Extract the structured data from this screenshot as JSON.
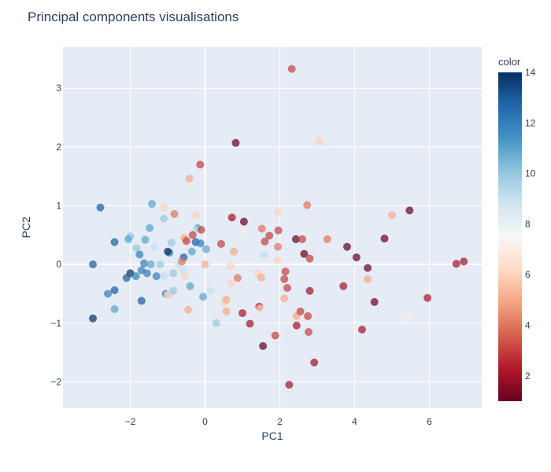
{
  "chart_data": {
    "type": "scatter",
    "title": "Principal components visualisations",
    "xlabel": "PC1",
    "ylabel": "PC2",
    "xlim": [
      -3.8,
      7.4
    ],
    "ylim": [
      -2.45,
      3.7
    ],
    "xticks": [
      -2,
      0,
      2,
      4,
      6
    ],
    "yticks": [
      -2,
      -1,
      0,
      1,
      2,
      3
    ],
    "grid": true,
    "legend": "colorbar-right",
    "colorbar": {
      "title": "color",
      "range": [
        1,
        14
      ],
      "ticks": [
        2,
        4,
        6,
        8,
        10,
        12,
        14
      ],
      "colorscale": [
        "#67001f",
        "#b2182b",
        "#d6604d",
        "#f4a582",
        "#fddbc7",
        "#f7f7f7",
        "#d1e5f0",
        "#92c5de",
        "#4393c3",
        "#2166ac",
        "#053061"
      ]
    },
    "points": [
      [
        2.32,
        3.33,
        3
      ],
      [
        0.82,
        2.07,
        1
      ],
      [
        3.07,
        2.1,
        6
      ],
      [
        -0.13,
        1.7,
        3
      ],
      [
        -0.42,
        1.46,
        5
      ],
      [
        -2.8,
        0.97,
        13
      ],
      [
        -1.42,
        1.03,
        11
      ],
      [
        -1.09,
        0.97,
        6
      ],
      [
        -0.24,
        0.85,
        6
      ],
      [
        -0.82,
        0.86,
        4
      ],
      [
        -1.1,
        0.78,
        10
      ],
      [
        0.72,
        0.8,
        2
      ],
      [
        1.04,
        0.73,
        1
      ],
      [
        1.95,
        0.9,
        6
      ],
      [
        2.73,
        1.01,
        4
      ],
      [
        5.0,
        0.84,
        5
      ],
      [
        5.47,
        0.92,
        1
      ],
      [
        -1.48,
        0.62,
        11
      ],
      [
        -0.2,
        0.62,
        11
      ],
      [
        -0.26,
        0.58,
        9
      ],
      [
        -0.1,
        0.59,
        3
      ],
      [
        1.03,
        0.58,
        7
      ],
      [
        1.52,
        0.61,
        4
      ],
      [
        1.72,
        0.49,
        3
      ],
      [
        1.96,
        0.58,
        3
      ],
      [
        -2.0,
        0.48,
        10
      ],
      [
        -2.05,
        0.43,
        11
      ],
      [
        -1.6,
        0.42,
        11
      ],
      [
        -0.9,
        0.37,
        10
      ],
      [
        -0.55,
        0.45,
        5
      ],
      [
        -0.33,
        0.5,
        3
      ],
      [
        -0.25,
        0.38,
        13
      ],
      [
        -0.12,
        0.36,
        12
      ],
      [
        0.03,
        0.26,
        11
      ],
      [
        0.43,
        0.35,
        3
      ],
      [
        1.6,
        0.39,
        3
      ],
      [
        2.43,
        0.43,
        1
      ],
      [
        2.6,
        0.43,
        3
      ],
      [
        3.27,
        0.43,
        4
      ],
      [
        3.8,
        0.3,
        1
      ],
      [
        4.8,
        0.44,
        1
      ],
      [
        -2.42,
        0.38,
        13
      ],
      [
        -1.83,
        0.28,
        10
      ],
      [
        -1.35,
        0.3,
        9
      ],
      [
        -1.1,
        0.25,
        8
      ],
      [
        -0.5,
        0.4,
        3
      ],
      [
        -0.95,
        0.2,
        12
      ],
      [
        -0.57,
        0.12,
        13
      ],
      [
        -0.35,
        0.22,
        11
      ],
      [
        0.77,
        0.22,
        5
      ],
      [
        1.95,
        0.3,
        4
      ],
      [
        2.65,
        0.18,
        1
      ],
      [
        2.8,
        0.1,
        3
      ],
      [
        1.58,
        0.17,
        9
      ],
      [
        1.95,
        0.07,
        6
      ],
      [
        4.05,
        0.12,
        1
      ],
      [
        4.35,
        -0.06,
        1
      ],
      [
        6.72,
        0.01,
        2
      ],
      [
        6.92,
        0.05,
        2
      ],
      [
        -3.0,
        0.0,
        13
      ],
      [
        -1.75,
        0.17,
        12
      ],
      [
        -1.63,
        0.02,
        12
      ],
      [
        -1.45,
        0.0,
        11
      ],
      [
        -1.2,
        0.0,
        10
      ],
      [
        -1.0,
        0.22,
        14
      ],
      [
        -0.7,
        0.0,
        9
      ],
      [
        -0.62,
        0.05,
        4
      ],
      [
        0.0,
        0.0,
        5
      ],
      [
        0.67,
        -0.03,
        6
      ],
      [
        2.15,
        -0.12,
        3
      ],
      [
        -1.7,
        -0.1,
        12
      ],
      [
        -1.55,
        -0.15,
        12
      ],
      [
        -1.3,
        -0.2,
        12
      ],
      [
        -1.1,
        -0.2,
        9
      ],
      [
        -0.85,
        -0.15,
        10
      ],
      [
        -0.6,
        -0.1,
        9
      ],
      [
        -2.0,
        -0.15,
        14
      ],
      [
        -2.1,
        -0.23,
        13
      ],
      [
        -1.85,
        -0.2,
        12
      ],
      [
        -0.55,
        -0.2,
        6
      ],
      [
        0.87,
        -0.23,
        4
      ],
      [
        1.42,
        -0.15,
        6
      ],
      [
        1.5,
        -0.22,
        5
      ],
      [
        2.12,
        -0.25,
        3
      ],
      [
        2.2,
        -0.4,
        3
      ],
      [
        4.35,
        -0.25,
        5
      ],
      [
        2.8,
        -0.45,
        2
      ],
      [
        3.7,
        -0.37,
        2
      ],
      [
        -2.6,
        -0.5,
        12
      ],
      [
        -2.42,
        -0.44,
        13
      ],
      [
        -1.05,
        -0.5,
        12
      ],
      [
        -0.95,
        -0.5,
        9
      ],
      [
        -1.0,
        -0.52,
        6
      ],
      [
        -0.85,
        -0.45,
        10
      ],
      [
        -0.4,
        -0.37,
        11
      ],
      [
        0.15,
        -0.45,
        9
      ],
      [
        0.7,
        -0.32,
        6
      ],
      [
        2.12,
        -0.58,
        5
      ],
      [
        -1.7,
        -0.62,
        13
      ],
      [
        -0.05,
        -0.55,
        11
      ],
      [
        0.52,
        -0.65,
        6
      ],
      [
        0.57,
        -0.6,
        5
      ],
      [
        1.45,
        -0.72,
        2
      ],
      [
        1.47,
        -0.75,
        6
      ],
      [
        2.45,
        -0.88,
        5
      ],
      [
        2.55,
        -0.8,
        3
      ],
      [
        2.75,
        -0.88,
        3
      ],
      [
        4.53,
        -0.64,
        1
      ],
      [
        5.95,
        -0.57,
        2
      ],
      [
        -2.42,
        -0.76,
        11
      ],
      [
        -0.45,
        -0.77,
        5
      ],
      [
        0.57,
        -0.8,
        5
      ],
      [
        1.0,
        -0.83,
        2
      ],
      [
        5.4,
        -0.9,
        7
      ],
      [
        -3.0,
        -0.92,
        14
      ],
      [
        0.3,
        -1.0,
        10
      ],
      [
        1.2,
        -1.01,
        2
      ],
      [
        2.45,
        -1.04,
        2
      ],
      [
        4.2,
        -1.11,
        2
      ],
      [
        2.77,
        -1.15,
        3
      ],
      [
        1.88,
        -1.21,
        3
      ],
      [
        1.55,
        -1.39,
        1
      ],
      [
        2.92,
        -1.67,
        2
      ],
      [
        2.25,
        -2.05,
        2
      ]
    ]
  }
}
